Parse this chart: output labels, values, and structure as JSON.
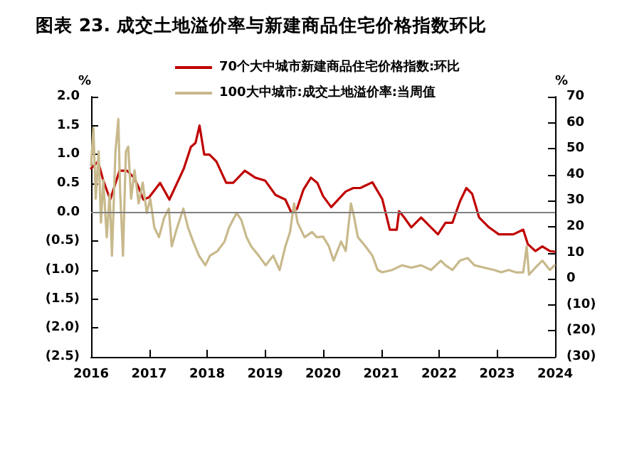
{
  "chart_data": {
    "type": "line",
    "title": "图表 23. 成交土地溢价率与新建商品住宅价格指数环比",
    "ylabel": "%",
    "y2label": "%",
    "xlim": [
      2016,
      2024
    ],
    "xticks": [
      2016,
      2017,
      2018,
      2019,
      2020,
      2021,
      2022,
      2023,
      2024
    ],
    "ylim": [
      -2.5,
      2.0
    ],
    "yticks": [
      {
        "value": 2.0,
        "label": "2.0"
      },
      {
        "value": 1.5,
        "label": "1.5"
      },
      {
        "value": 1.0,
        "label": "1.0"
      },
      {
        "value": 0.5,
        "label": "0.5"
      },
      {
        "value": 0.0,
        "label": "0.0"
      },
      {
        "value": -0.5,
        "label": "(0.5)"
      },
      {
        "value": -1.0,
        "label": "(1.0)"
      },
      {
        "value": -1.5,
        "label": "(1.5)"
      },
      {
        "value": -2.0,
        "label": "(2.0)"
      },
      {
        "value": -2.5,
        "label": "(2.5)"
      }
    ],
    "y2lim": [
      -30,
      70
    ],
    "y2ticks": [
      70,
      60,
      50,
      40,
      30,
      20,
      10,
      0,
      {
        "value": -10,
        "label": "(10)"
      },
      {
        "value": -20,
        "label": "(20)"
      },
      {
        "value": -30,
        "label": "(30)"
      }
    ],
    "grid": false,
    "legend": "top",
    "marker": "none",
    "line_style": "solid",
    "ref_lines": [
      {
        "axis": "y",
        "value": 0,
        "color": "#808080"
      }
    ],
    "series": [
      {
        "name": "70个大中城市新建商品住宅价格指数:环比",
        "color": "#c00000",
        "x": [
          2016.0,
          2016.12,
          2016.21,
          2016.33,
          2016.49,
          2016.62,
          2016.74,
          2016.82,
          2016.9,
          2017.0,
          2017.19,
          2017.35,
          2017.6,
          2017.72,
          2017.8,
          2017.87,
          2017.95,
          2018.04,
          2018.16,
          2018.33,
          2018.45,
          2018.65,
          2018.83,
          2019.0,
          2019.18,
          2019.35,
          2019.45,
          2019.55,
          2019.66,
          2019.79,
          2019.9,
          2020.0,
          2020.14,
          2020.27,
          2020.39,
          2020.52,
          2020.64,
          2020.85,
          2021.02,
          2021.15,
          2021.27,
          2021.31,
          2021.4,
          2021.52,
          2021.69,
          2021.86,
          2021.98,
          2022.11,
          2022.23,
          2022.36,
          2022.47,
          2022.57,
          2022.69,
          2022.86,
          2023.03,
          2023.28,
          2023.45,
          2023.53,
          2023.66,
          2023.78,
          2023.91,
          2023.99
        ],
        "values": [
          0.76,
          0.88,
          0.55,
          0.22,
          0.72,
          0.72,
          0.6,
          0.43,
          0.22,
          0.26,
          0.51,
          0.22,
          0.76,
          1.13,
          1.2,
          1.5,
          1.0,
          1.0,
          0.88,
          0.51,
          0.51,
          0.72,
          0.6,
          0.55,
          0.3,
          0.22,
          0.0,
          0.06,
          0.39,
          0.6,
          0.51,
          0.28,
          0.09,
          0.23,
          0.36,
          0.42,
          0.42,
          0.52,
          0.23,
          -0.3,
          -0.3,
          0.02,
          -0.09,
          -0.26,
          -0.09,
          -0.26,
          -0.38,
          -0.18,
          -0.18,
          0.19,
          0.42,
          0.32,
          -0.09,
          -0.26,
          -0.38,
          -0.38,
          -0.3,
          -0.55,
          -0.67,
          -0.59,
          -0.67,
          -0.68
        ]
      },
      {
        "name": "100大中城市:成交土地溢价率:当周值",
        "color": "#c8b98c",
        "axis": "y2",
        "x": [
          2016.0,
          2016.04,
          2016.08,
          2016.13,
          2016.17,
          2016.21,
          2016.27,
          2016.32,
          2016.36,
          2016.42,
          2016.47,
          2016.5,
          2016.55,
          2016.6,
          2016.64,
          2016.69,
          2016.75,
          2016.82,
          2016.89,
          2016.96,
          2017.02,
          2017.09,
          2017.17,
          2017.26,
          2017.34,
          2017.39,
          2017.46,
          2017.59,
          2017.67,
          2017.76,
          2017.86,
          2017.97,
          2018.05,
          2018.18,
          2018.3,
          2018.38,
          2018.51,
          2018.59,
          2018.68,
          2018.76,
          2018.89,
          2019.01,
          2019.14,
          2019.25,
          2019.35,
          2019.43,
          2019.5,
          2019.56,
          2019.68,
          2019.81,
          2019.89,
          2020.0,
          2020.1,
          2020.18,
          2020.31,
          2020.39,
          2020.48,
          2020.52,
          2020.6,
          2020.73,
          2020.85,
          2020.94,
          2021.02,
          2021.19,
          2021.36,
          2021.52,
          2021.69,
          2021.86,
          2022.03,
          2022.11,
          2022.23,
          2022.36,
          2022.49,
          2022.61,
          2022.78,
          2022.95,
          2023.07,
          2023.2,
          2023.32,
          2023.45,
          2023.51,
          2023.55,
          2023.66,
          2023.78,
          2023.91,
          2023.99
        ],
        "values": [
          43.5,
          58,
          30.8,
          49,
          21.6,
          38,
          16,
          32.6,
          8.9,
          49,
          61.4,
          34,
          8.9,
          49,
          50.8,
          30.8,
          41.7,
          29,
          37,
          25.3,
          30.8,
          19.8,
          16,
          23.5,
          27,
          12.5,
          18,
          27,
          19.8,
          14.3,
          8.9,
          5.2,
          8.9,
          10.7,
          14.3,
          19.8,
          25.3,
          22.6,
          16,
          12.5,
          8.9,
          5.2,
          8.9,
          3.4,
          12.5,
          18,
          29,
          21.6,
          16,
          18,
          16,
          16.2,
          12.5,
          7,
          14.3,
          10.7,
          29,
          25.3,
          16,
          12.5,
          8.9,
          3.4,
          2.5,
          3.4,
          5.2,
          4.3,
          5.2,
          3.4,
          7,
          5.2,
          3.4,
          7,
          8,
          5.2,
          4.3,
          3.4,
          2.5,
          3.4,
          2.5,
          2.5,
          12.5,
          1.6,
          4.3,
          7,
          3.4,
          5.2
        ]
      }
    ]
  }
}
